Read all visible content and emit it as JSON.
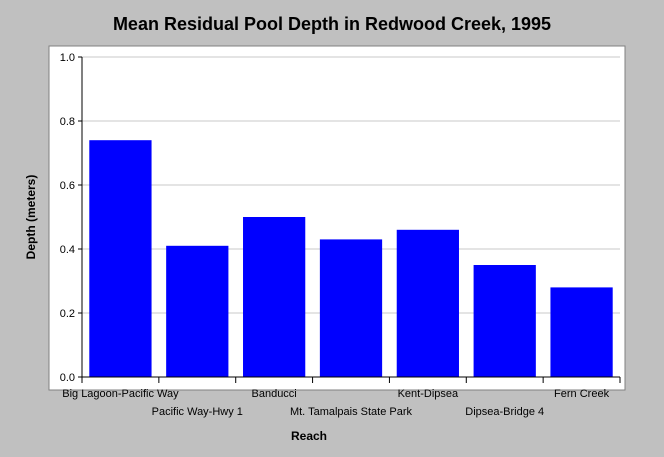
{
  "chart_data": {
    "type": "bar",
    "title": "Mean Residual Pool Depth in Redwood Creek, 1995",
    "xlabel": "Reach",
    "ylabel": "Depth (meters)",
    "ylim": [
      0,
      1.0
    ],
    "yticks": [
      "0.0",
      "0.2",
      "0.4",
      "0.6",
      "0.8",
      "1.0"
    ],
    "grid": true,
    "categories": [
      "Big Lagoon-Pacific Way",
      "Pacific Way-Hwy 1",
      "Banducci",
      "Mt. Tamalpais State Park",
      "Kent-Dipsea",
      "Dipsea-Bridge 4",
      "Fern Creek"
    ],
    "values": [
      0.74,
      0.41,
      0.5,
      0.43,
      0.46,
      0.35,
      0.28
    ],
    "bar_color": "#0000ff",
    "plot_background": "#ffffff",
    "page_background": "#c0c0c0"
  }
}
